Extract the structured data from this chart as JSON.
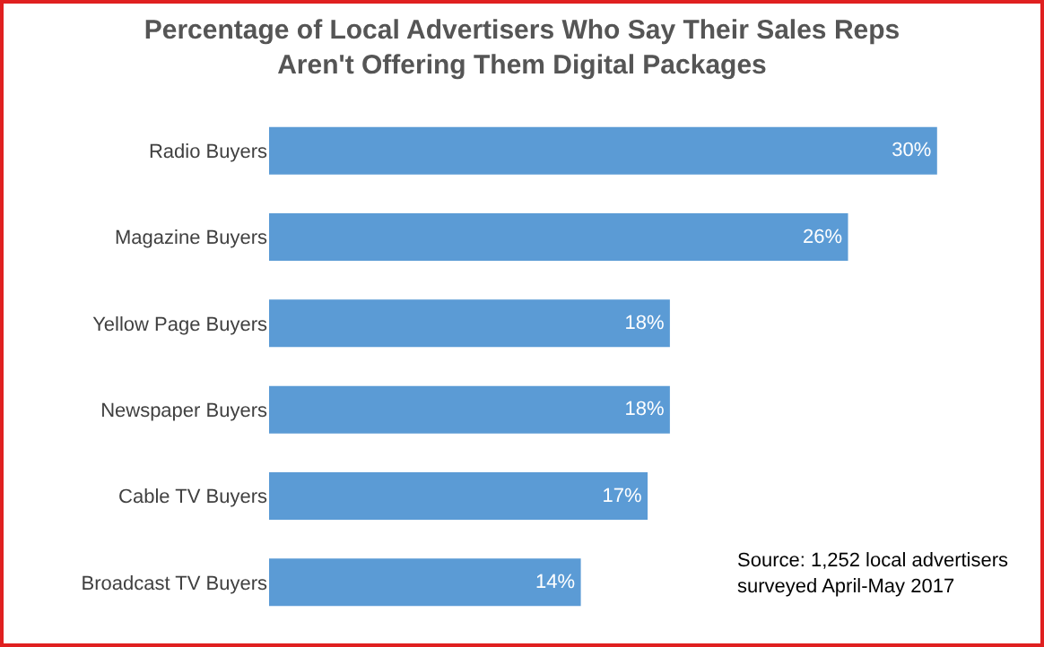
{
  "chart_data": {
    "type": "bar",
    "orientation": "horizontal",
    "title": "Percentage of Local Advertisers Who Say Their Sales Reps\nAren't Offering Them Digital Packages",
    "categories": [
      "Radio Buyers",
      "Magazine Buyers",
      "Yellow Page Buyers",
      "Newspaper Buyers",
      "Cable TV Buyers",
      "Broadcast TV Buyers"
    ],
    "values": [
      30,
      26,
      18,
      18,
      17,
      14
    ],
    "value_labels": [
      "30%",
      "26%",
      "18%",
      "18%",
      "17%",
      "14%"
    ],
    "color": "#5b9bd5",
    "tick_labels": "y",
    "annotations": [
      "Source: 1,252 local advertisers\nsurveyed April-May 2017"
    ]
  }
}
